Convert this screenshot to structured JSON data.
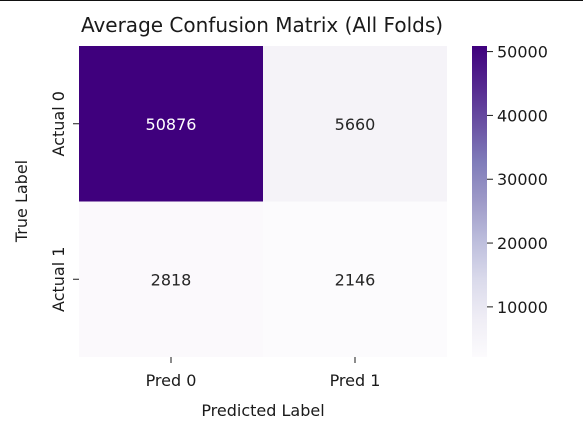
{
  "chart_data": {
    "type": "heatmap",
    "title": "Average Confusion Matrix (All Folds)",
    "xlabel": "Predicted Label",
    "ylabel": "True Label",
    "x_categories": [
      "Pred 0",
      "Pred 1"
    ],
    "y_categories": [
      "Actual 0",
      "Actual 1"
    ],
    "values": [
      [
        50876,
        5660
      ],
      [
        2818,
        2146
      ]
    ],
    "colormap": [
      "#fcfbfd",
      "#efedf5",
      "#dadaeb",
      "#bcbddc",
      "#9e9ac8",
      "#807dba",
      "#6a51a3",
      "#54278f",
      "#3f007d"
    ],
    "colorbar": {
      "range": [
        2146,
        50876
      ],
      "ticks": [
        "10000",
        "20000",
        "30000",
        "40000",
        "50000"
      ],
      "tick_values": [
        10000,
        20000,
        30000,
        40000,
        50000
      ]
    },
    "text_colors": {
      "light": "#ffffff",
      "dark": "#262626"
    }
  }
}
